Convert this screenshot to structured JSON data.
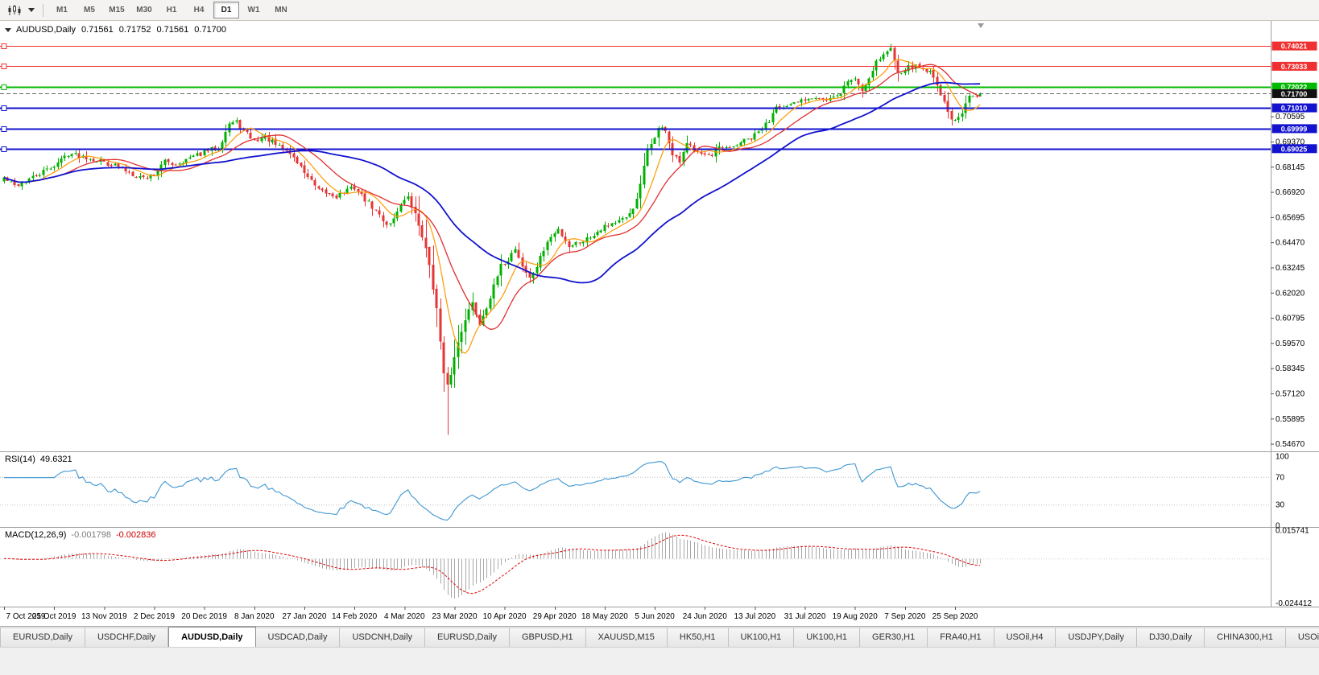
{
  "toolbar": {
    "chart_icon": "candlestick-chart-icon",
    "dropdown_icon": "chevron-down-icon",
    "timeframes": [
      "M1",
      "M5",
      "M15",
      "M30",
      "H1",
      "H4",
      "D1",
      "W1",
      "MN"
    ],
    "active_timeframe": "D1"
  },
  "chart_header": {
    "symbol": "AUDUSD,Daily",
    "open": "0.71561",
    "high": "0.71752",
    "low": "0.71561",
    "close": "0.71700"
  },
  "indicators": {
    "rsi": {
      "name": "RSI(14)",
      "value": "49.6321"
    },
    "macd": {
      "name": "MACD(12,26,9)",
      "value_main": "-0.001798",
      "value_signal": "-0.002836"
    }
  },
  "tabs": {
    "active_index": 2,
    "items": [
      "EURUSD,Daily",
      "USDCHF,Daily",
      "AUDUSD,Daily",
      "USDCAD,Daily",
      "USDCNH,Daily",
      "EURUSD,Daily",
      "GBPUSD,H1",
      "XAUUSD,M15",
      "HK50,H1",
      "UK100,H1",
      "UK100,H1",
      "GER30,H1",
      "FRA40,H1",
      "USOil,H4",
      "USDJPY,Daily",
      "DJ30,Daily",
      "CHINA300,H1",
      "USOil,H1"
    ]
  },
  "chart_data": {
    "type": "candlestick",
    "symbol": "AUDUSD",
    "timeframe": "Daily",
    "bars": 274,
    "bar_step": 4.44,
    "seed": 42,
    "noise": 0.0013,
    "ylim": [
      0.5434,
      0.7524
    ],
    "up_color": "#00b000",
    "down_color": "#e53535",
    "close_keypoints": [
      [
        0,
        0.676
      ],
      [
        3,
        0.6722
      ],
      [
        6,
        0.6745
      ],
      [
        9,
        0.677
      ],
      [
        12,
        0.68
      ],
      [
        15,
        0.6835
      ],
      [
        18,
        0.688
      ],
      [
        21,
        0.687
      ],
      [
        24,
        0.6858
      ],
      [
        28,
        0.6838
      ],
      [
        32,
        0.6815
      ],
      [
        36,
        0.678
      ],
      [
        39,
        0.6762
      ],
      [
        42,
        0.6778
      ],
      [
        45,
        0.684
      ],
      [
        48,
        0.6828
      ],
      [
        52,
        0.6855
      ],
      [
        56,
        0.6885
      ],
      [
        60,
        0.691
      ],
      [
        63,
        0.7025
      ],
      [
        65,
        0.703
      ],
      [
        67,
        0.699
      ],
      [
        70,
        0.694
      ],
      [
        73,
        0.696
      ],
      [
        76,
        0.692
      ],
      [
        80,
        0.688
      ],
      [
        84,
        0.679
      ],
      [
        88,
        0.6695
      ],
      [
        93,
        0.6672
      ],
      [
        96,
        0.67
      ],
      [
        98,
        0.6715
      ],
      [
        101,
        0.6655
      ],
      [
        104,
        0.66
      ],
      [
        107,
        0.6535
      ],
      [
        109,
        0.656
      ],
      [
        111,
        0.664
      ],
      [
        113,
        0.666
      ],
      [
        115,
        0.658
      ],
      [
        117,
        0.648
      ],
      [
        119,
        0.634
      ],
      [
        121,
        0.612
      ],
      [
        123,
        0.58
      ],
      [
        124,
        0.5745
      ],
      [
        125,
        0.581
      ],
      [
        127,
        0.596
      ],
      [
        129,
        0.608
      ],
      [
        131,
        0.615
      ],
      [
        133,
        0.605
      ],
      [
        136,
        0.618
      ],
      [
        139,
        0.633
      ],
      [
        141,
        0.6365
      ],
      [
        143,
        0.642
      ],
      [
        145,
        0.633
      ],
      [
        147,
        0.627
      ],
      [
        149,
        0.633
      ],
      [
        152,
        0.645
      ],
      [
        155,
        0.651
      ],
      [
        158,
        0.643
      ],
      [
        161,
        0.645
      ],
      [
        164,
        0.6475
      ],
      [
        168,
        0.653
      ],
      [
        171,
        0.6545
      ],
      [
        174,
        0.656
      ],
      [
        177,
        0.665
      ],
      [
        180,
        0.689
      ],
      [
        183,
        0.7
      ],
      [
        185,
        0.6995
      ],
      [
        187,
        0.687
      ],
      [
        189,
        0.6835
      ],
      [
        191,
        0.692
      ],
      [
        194,
        0.69
      ],
      [
        196,
        0.6875
      ],
      [
        198,
        0.686
      ],
      [
        200,
        0.6905
      ],
      [
        203,
        0.69
      ],
      [
        206,
        0.6935
      ],
      [
        209,
        0.695
      ],
      [
        212,
        0.7
      ],
      [
        214,
        0.704
      ],
      [
        216,
        0.712
      ],
      [
        218,
        0.71
      ],
      [
        220,
        0.7108
      ],
      [
        222,
        0.713
      ],
      [
        224,
        0.7145
      ],
      [
        227,
        0.716
      ],
      [
        230,
        0.7135
      ],
      [
        233,
        0.7155
      ],
      [
        236,
        0.723
      ],
      [
        238,
        0.7245
      ],
      [
        240,
        0.7185
      ],
      [
        242,
        0.725
      ],
      [
        244,
        0.733
      ],
      [
        246,
        0.736
      ],
      [
        248,
        0.739
      ],
      [
        250,
        0.728
      ],
      [
        252,
        0.729
      ],
      [
        254,
        0.7305
      ],
      [
        256,
        0.73
      ],
      [
        258,
        0.7285
      ],
      [
        260,
        0.726
      ],
      [
        262,
        0.717
      ],
      [
        264,
        0.708
      ],
      [
        266,
        0.703
      ],
      [
        268,
        0.707
      ],
      [
        270,
        0.716
      ],
      [
        272,
        0.7156
      ],
      [
        273,
        0.717
      ]
    ],
    "wick_overrides": {
      "124": {
        "low": 0.551
      },
      "183": {
        "high": 0.7013
      },
      "248": {
        "high": 0.7413
      }
    },
    "last_bar": {
      "open": 0.71561,
      "high": 0.71752,
      "low": 0.71561,
      "close": 0.717
    },
    "moving_averages": [
      {
        "period": 8,
        "color": "#ff9900",
        "width": 1.2
      },
      {
        "period": 17,
        "color": "#e03030",
        "width": 1.3
      },
      {
        "period": 45,
        "color": "#1212cf",
        "width": 1.8
      }
    ],
    "hlines": [
      {
        "value": 0.74021,
        "label": "0.74021",
        "color": "#f03030",
        "width": 1
      },
      {
        "value": 0.73033,
        "label": "0.73033",
        "color": "#f03030",
        "width": 1
      },
      {
        "value": 0.72022,
        "label": "0.72022",
        "color": "#00b900",
        "width": 2
      },
      {
        "value": 0.7101,
        "label": "0.71010",
        "color": "#1212cf",
        "width": 2
      },
      {
        "value": 0.69999,
        "label": "0.69999",
        "color": "#1212cf",
        "width": 2
      },
      {
        "value": 0.69025,
        "label": "0.69025",
        "color": "#1212cf",
        "width": 2
      }
    ],
    "current_price": {
      "value": 0.717,
      "label": "0.71700",
      "box_color": "#111111"
    },
    "price_axis_labels": [
      "0.70595",
      "0.69370",
      "0.68145",
      "0.66920",
      "0.65695",
      "0.64470",
      "0.63245",
      "0.62020",
      "0.60795",
      "0.59570",
      "0.58345",
      "0.57120",
      "0.55895",
      "0.54670"
    ],
    "date_labels": [
      "7 Oct 2019",
      "25 Oct 2019",
      "13 Nov 2019",
      "2 Dec 2019",
      "20 Dec 2019",
      "8 Jan 2020",
      "27 Jan 2020",
      "14 Feb 2020",
      "4 Mar 2020",
      "23 Mar 2020",
      "10 Apr 2020",
      "29 Apr 2020",
      "18 May 2020",
      "5 Jun 2020",
      "24 Jun 2020",
      "13 Jul 2020",
      "31 Jul 2020",
      "19 Aug 2020",
      "7 Sep 2020",
      "25 Sep 2020"
    ],
    "date_label_indices": [
      0,
      14,
      28,
      42,
      56,
      70,
      84,
      98,
      112,
      126,
      140,
      154,
      168,
      182,
      196,
      210,
      224,
      238,
      252,
      266
    ],
    "rsi": {
      "period": 14,
      "levels": [
        100,
        70,
        30,
        0
      ],
      "level_lines": [
        70,
        30
      ],
      "color": "#3d96d2"
    },
    "macd": {
      "ylim": [
        -0.0265,
        0.017
      ],
      "hist_color": "#a8a8a8",
      "signal_color": "#e00000",
      "axis_top_label": "0.015741",
      "axis_bottom_label": "-0.024412"
    }
  }
}
